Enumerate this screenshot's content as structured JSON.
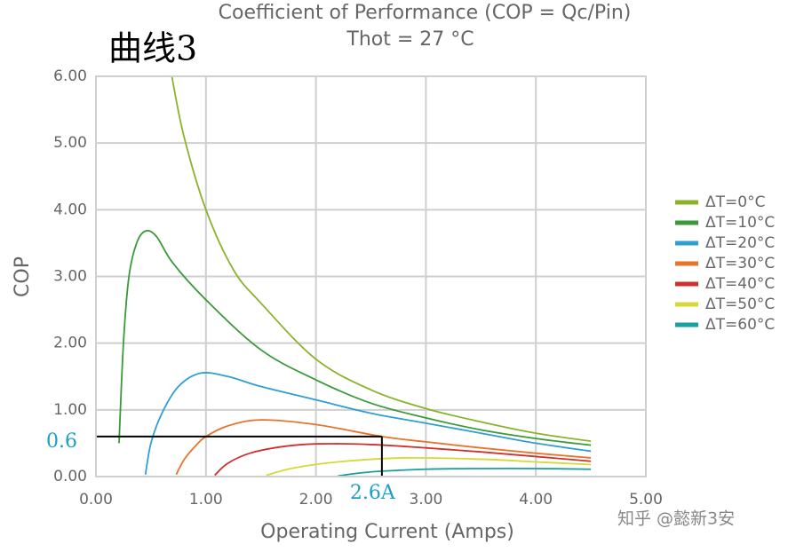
{
  "chart_data": {
    "type": "line",
    "title": "Coefficient of Performance (COP = Qc/Pin)",
    "subtitle": "Thot = 27 °C",
    "annotation_title": "曲线3",
    "watermark": "知乎 @懿新3安",
    "x_label": "Operating Current (Amps)",
    "y_label": "COP",
    "xlim": [
      0,
      5
    ],
    "ylim": [
      0,
      6
    ],
    "xticks": [
      {
        "value": 0,
        "label": "0.00"
      },
      {
        "value": 1,
        "label": "1.00"
      },
      {
        "value": 2,
        "label": "2.00"
      },
      {
        "value": 3,
        "label": "3.00"
      },
      {
        "value": 4,
        "label": "4.00"
      },
      {
        "value": 5,
        "label": "5.00"
      }
    ],
    "yticks": [
      {
        "value": 0,
        "label": "0.00"
      },
      {
        "value": 1,
        "label": "1.00"
      },
      {
        "value": 2,
        "label": "2.00"
      },
      {
        "value": 3,
        "label": "3.00"
      },
      {
        "value": 4,
        "label": "4.00"
      },
      {
        "value": 5,
        "label": "5.00"
      },
      {
        "value": 6,
        "label": "6.00"
      }
    ],
    "grid": true,
    "legend": "right",
    "guide": {
      "x": 2.6,
      "y": 0.6,
      "x_label": "2.6A",
      "y_label": "0.6",
      "color": "#000000",
      "label_color": "#1aa0c8"
    },
    "series": [
      {
        "name": "ΔT=0°C",
        "color": "#8ab32a",
        "x": [
          0.69,
          0.8,
          1.0,
          1.25,
          1.5,
          2.0,
          2.5,
          3.0,
          3.5,
          4.0,
          4.5
        ],
        "values": [
          6.0,
          5.1,
          4.0,
          3.1,
          2.6,
          1.76,
          1.3,
          1.02,
          0.82,
          0.65,
          0.53
        ]
      },
      {
        "name": "ΔT=10°C",
        "color": "#3a9a3a",
        "x": [
          0.21,
          0.25,
          0.3,
          0.37,
          0.45,
          0.55,
          0.7,
          1.0,
          1.5,
          2.0,
          2.5,
          3.0,
          3.5,
          4.0,
          4.5
        ],
        "values": [
          0.5,
          2.0,
          3.0,
          3.5,
          3.68,
          3.6,
          3.2,
          2.65,
          1.9,
          1.45,
          1.1,
          0.88,
          0.7,
          0.57,
          0.47
        ]
      },
      {
        "name": "ΔT=20°C",
        "color": "#2e9fd0",
        "x": [
          0.45,
          0.5,
          0.6,
          0.75,
          0.95,
          1.2,
          1.5,
          2.0,
          2.5,
          3.0,
          3.5,
          4.0,
          4.5
        ],
        "values": [
          0.03,
          0.5,
          0.95,
          1.35,
          1.55,
          1.5,
          1.35,
          1.15,
          0.95,
          0.8,
          0.65,
          0.5,
          0.38
        ]
      },
      {
        "name": "ΔT=30°C",
        "color": "#e8732a",
        "x": [
          0.73,
          0.8,
          0.9,
          1.0,
          1.2,
          1.5,
          2.0,
          2.6,
          3.0,
          3.5,
          4.0,
          4.5
        ],
        "values": [
          0.03,
          0.25,
          0.45,
          0.6,
          0.76,
          0.85,
          0.78,
          0.6,
          0.52,
          0.43,
          0.35,
          0.28
        ]
      },
      {
        "name": "ΔT=40°C",
        "color": "#d0312d",
        "x": [
          1.08,
          1.2,
          1.4,
          1.7,
          2.0,
          2.5,
          3.0,
          3.5,
          4.0,
          4.5
        ],
        "values": [
          0.02,
          0.2,
          0.35,
          0.45,
          0.49,
          0.48,
          0.43,
          0.37,
          0.3,
          0.23
        ]
      },
      {
        "name": "ΔT=50°C",
        "color": "#d4d936",
        "x": [
          1.55,
          1.8,
          2.2,
          2.8,
          3.5,
          4.0,
          4.5
        ],
        "values": [
          0.02,
          0.13,
          0.22,
          0.28,
          0.26,
          0.22,
          0.18
        ]
      },
      {
        "name": "ΔT=60°C",
        "color": "#1a9fa0",
        "x": [
          2.2,
          2.5,
          3.0,
          3.5,
          4.0,
          4.5
        ],
        "values": [
          0.01,
          0.07,
          0.11,
          0.12,
          0.12,
          0.11
        ]
      }
    ]
  }
}
